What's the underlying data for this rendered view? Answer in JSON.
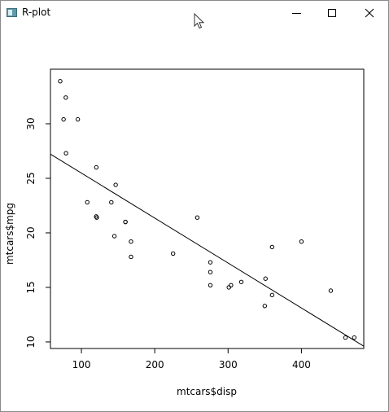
{
  "window": {
    "title": "R-plot"
  },
  "icons": {
    "app": "r-graphics-icon",
    "cursor": "mouse-pointer-icon",
    "minimize": "minimize-icon",
    "maximize": "maximize-icon",
    "close": "close-icon"
  },
  "chart_data": {
    "type": "scatter",
    "title": "",
    "xlabel": "mtcars$disp",
    "ylabel": "mtcars$mpg",
    "xlim": [
      57.8,
      485.0
    ],
    "ylim": [
      9.4,
      35.0
    ],
    "xticks": [
      100,
      200,
      300,
      400
    ],
    "yticks": [
      10,
      15,
      20,
      25,
      30
    ],
    "grid": false,
    "points": [
      [
        160,
        21.0
      ],
      [
        160,
        21.0
      ],
      [
        108,
        22.8
      ],
      [
        258,
        21.4
      ],
      [
        360,
        18.7
      ],
      [
        225,
        18.1
      ],
      [
        360,
        14.3
      ],
      [
        146.7,
        24.4
      ],
      [
        140.8,
        22.8
      ],
      [
        167.6,
        19.2
      ],
      [
        167.6,
        17.8
      ],
      [
        275.8,
        16.4
      ],
      [
        275.8,
        17.3
      ],
      [
        275.8,
        15.2
      ],
      [
        472,
        10.4
      ],
      [
        460,
        10.4
      ],
      [
        440,
        14.7
      ],
      [
        78.7,
        32.4
      ],
      [
        75.7,
        30.4
      ],
      [
        71.1,
        33.9
      ],
      [
        120.1,
        21.5
      ],
      [
        318,
        15.5
      ],
      [
        304,
        15.2
      ],
      [
        350,
        13.3
      ],
      [
        400,
        19.2
      ],
      [
        79,
        27.3
      ],
      [
        120.3,
        26.0
      ],
      [
        95.1,
        30.4
      ],
      [
        351,
        15.8
      ],
      [
        145,
        19.7
      ],
      [
        301,
        15.0
      ],
      [
        121,
        21.4
      ]
    ],
    "regression_line": {
      "intercept": 29.5999,
      "slope": -0.04122
    }
  }
}
